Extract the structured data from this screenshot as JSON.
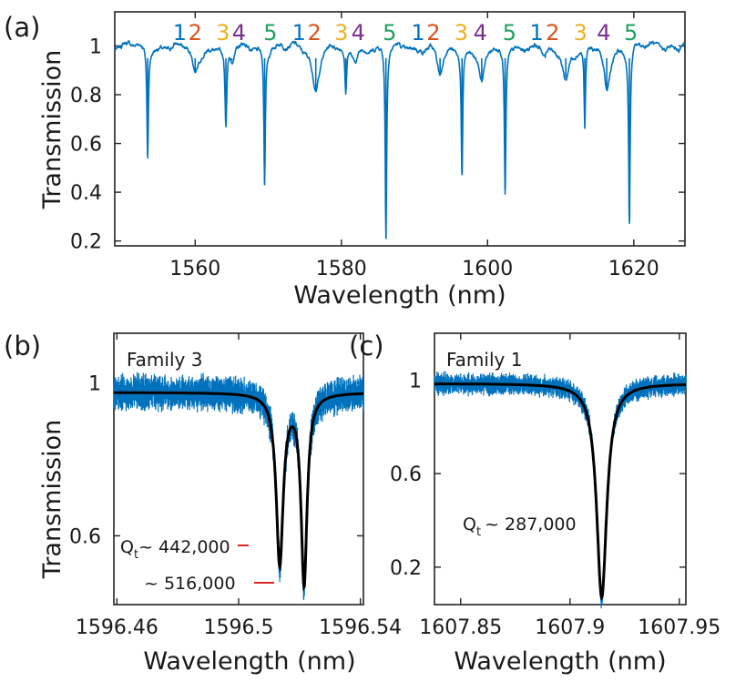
{
  "chart_data": [
    {
      "panel": "(a)",
      "type": "line",
      "xlabel": "Wavelength (nm)",
      "ylabel": "Transmission",
      "xlim": [
        1549,
        1627
      ],
      "ylim": [
        0.18,
        1.14
      ],
      "xticks": [
        1560,
        1580,
        1600,
        1620
      ],
      "yticks": [
        0.2,
        0.4,
        0.6,
        0.8,
        1
      ],
      "ytick_labels": [
        "0.2",
        "0.4",
        "0.6",
        "0.8",
        "1"
      ],
      "series_color": "#0072bd",
      "baseline": 1.0,
      "resonances": [
        {
          "x": 1553.5,
          "min": 0.55,
          "width": 0.12,
          "family": 1
        },
        {
          "x": 1560.0,
          "min": 0.89,
          "width": 0.5,
          "family": 2
        },
        {
          "x": 1564.2,
          "min": 0.68,
          "width": 0.15,
          "family": 3
        },
        {
          "x": 1565.0,
          "min": 0.94,
          "width": 0.4,
          "family": 4
        },
        {
          "x": 1569.5,
          "min": 0.44,
          "width": 0.12,
          "family": 5
        },
        {
          "x": 1576.5,
          "min": 0.82,
          "width": 0.5,
          "family": 2
        },
        {
          "x": 1580.6,
          "min": 0.8,
          "width": 0.15,
          "family": 3
        },
        {
          "x": 1581.8,
          "min": 0.95,
          "width": 0.4,
          "family": 4
        },
        {
          "x": 1586.1,
          "min": 0.21,
          "width": 0.12,
          "family": 5
        },
        {
          "x": 1593.5,
          "min": 0.88,
          "width": 0.5,
          "family": 1
        },
        {
          "x": 1596.5,
          "min": 0.47,
          "width": 0.12,
          "family": 3
        },
        {
          "x": 1599.2,
          "min": 0.85,
          "width": 0.5,
          "family": 4
        },
        {
          "x": 1602.4,
          "min": 0.39,
          "width": 0.12,
          "family": 5
        },
        {
          "x": 1607.9,
          "min": 0.96,
          "width": 0.5,
          "family": 1
        },
        {
          "x": 1610.7,
          "min": 0.87,
          "width": 0.5,
          "family": 2
        },
        {
          "x": 1613.3,
          "min": 0.66,
          "width": 0.12,
          "family": 3
        },
        {
          "x": 1616.3,
          "min": 0.82,
          "width": 0.5,
          "family": 4
        },
        {
          "x": 1619.4,
          "min": 0.27,
          "width": 0.12,
          "family": 5
        }
      ],
      "family_labels": [
        {
          "text": "1",
          "x": 1557.9,
          "family": 1
        },
        {
          "text": "2",
          "x": 1560.0,
          "family": 2
        },
        {
          "text": "3",
          "x": 1563.8,
          "family": 3
        },
        {
          "text": "4",
          "x": 1566.0,
          "family": 4
        },
        {
          "text": "5",
          "x": 1570.3,
          "family": 5
        },
        {
          "text": "1",
          "x": 1574.2,
          "family": 1
        },
        {
          "text": "2",
          "x": 1576.3,
          "family": 2
        },
        {
          "text": "3",
          "x": 1580.0,
          "family": 3
        },
        {
          "text": "4",
          "x": 1582.3,
          "family": 4
        },
        {
          "text": "5",
          "x": 1586.6,
          "family": 5
        },
        {
          "text": "1",
          "x": 1590.5,
          "family": 1
        },
        {
          "text": "2",
          "x": 1592.6,
          "family": 2
        },
        {
          "text": "3",
          "x": 1596.4,
          "family": 3
        },
        {
          "text": "4",
          "x": 1599.0,
          "family": 4
        },
        {
          "text": "5",
          "x": 1603.0,
          "family": 5
        },
        {
          "text": "1",
          "x": 1606.7,
          "family": 1
        },
        {
          "text": "2",
          "x": 1608.9,
          "family": 2
        },
        {
          "text": "3",
          "x": 1612.7,
          "family": 3
        },
        {
          "text": "4",
          "x": 1615.9,
          "family": 4
        },
        {
          "text": "5",
          "x": 1619.6,
          "family": 5
        }
      ]
    },
    {
      "panel": "(b)",
      "type": "line",
      "xlabel": "Wavelength (nm)",
      "ylabel": "Transmission",
      "xlim": [
        1596.459,
        1596.541
      ],
      "ylim": [
        0.42,
        1.13
      ],
      "xticks": [
        1596.46,
        1596.5,
        1596.54
      ],
      "xtick_labels": [
        "1596.46",
        "1596.5",
        "1596.54"
      ],
      "yticks": [
        0.6,
        1
      ],
      "ytick_labels": [
        "0.6",
        "1"
      ],
      "series_color": "#0072bd",
      "fit_color": "#000000",
      "baseline": 0.975,
      "resonances": [
        {
          "x": 1596.5135,
          "min": 0.53,
          "width": 0.0014
        },
        {
          "x": 1596.5215,
          "min": 0.48,
          "width": 0.0012
        }
      ],
      "legend": "Family 3",
      "legend_color": "#edb120",
      "annotations": [
        {
          "text": "Q",
          "sub": "t",
          "rest": "~ 442,000"
        },
        {
          "text": "~ 516,000"
        }
      ],
      "annotation_color": "#d62728"
    },
    {
      "panel": "(c)",
      "type": "line",
      "xlabel": "Wavelength (nm)",
      "ylabel": "",
      "xlim": [
        1607.838,
        1607.953
      ],
      "ylim": [
        0.04,
        1.2
      ],
      "xticks": [
        1607.85,
        1607.9,
        1607.95
      ],
      "xtick_labels": [
        "1607.85",
        "1607.9",
        "1607.95"
      ],
      "yticks": [
        0.2,
        0.6,
        1
      ],
      "ytick_labels": [
        "0.2",
        "0.6",
        "1"
      ],
      "series_color": "#0072bd",
      "fit_color": "#000000",
      "baseline": 0.985,
      "resonances": [
        {
          "x": 1607.9145,
          "min": 0.07,
          "width": 0.0028
        }
      ],
      "legend": "Family 1",
      "legend_color": "#0072bd",
      "annotations": [
        {
          "text": "Q",
          "sub": "t",
          "rest": "~ 287,000"
        }
      ]
    }
  ],
  "family_colors": {
    "1": "#0072bd",
    "2": "#d95319",
    "3": "#edb120",
    "4": "#7e2f8e",
    "5": "#21a060"
  }
}
